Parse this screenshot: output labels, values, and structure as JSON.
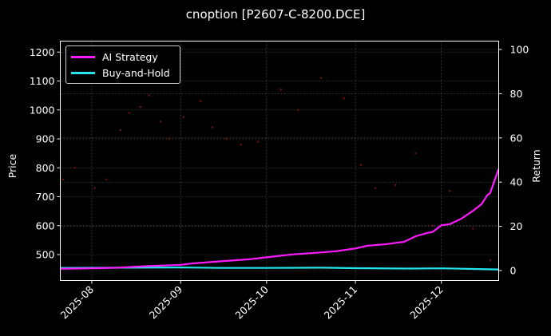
{
  "title": "cnoption [P2607-C-8200.DCE]",
  "colors": {
    "background": "#000000",
    "ai_strategy": "#ff1aff",
    "buy_and_hold": "#22e5ee",
    "price_points": "#7a1010",
    "grid": "#555555",
    "axis": "#ffffff"
  },
  "legend": {
    "items": [
      {
        "label": "AI Strategy",
        "color": "#ff1aff"
      },
      {
        "label": "Buy-and-Hold",
        "color": "#22e5ee"
      }
    ]
  },
  "chart_data": {
    "type": "line",
    "title": "cnoption [P2607-C-8200.DCE]",
    "xlabel": "",
    "ylabel": "Price",
    "y2label": "Return",
    "x_ticks": [
      "2025-08",
      "2025-09",
      "2025-10",
      "2025-11",
      "2025-12"
    ],
    "y_ticks": [
      500,
      600,
      700,
      800,
      900,
      1000,
      1100,
      1200
    ],
    "y2_ticks": [
      0,
      20,
      40,
      60,
      80,
      100
    ],
    "ylim": [
      420,
      1240
    ],
    "y2lim": [
      -3.5,
      104
    ],
    "xlim": [
      "2025-07-21",
      "2025-12-21"
    ],
    "grid": true,
    "legend_position": "upper left",
    "series": [
      {
        "name": "AI Strategy",
        "axis": "right",
        "x": [
          "2025-07-21",
          "2025-08-01",
          "2025-08-10",
          "2025-08-20",
          "2025-09-01",
          "2025-09-05",
          "2025-09-15",
          "2025-09-25",
          "2025-10-01",
          "2025-10-10",
          "2025-10-18",
          "2025-10-25",
          "2025-11-01",
          "2025-11-05",
          "2025-11-12",
          "2025-11-18",
          "2025-11-22",
          "2025-11-26",
          "2025-11-28",
          "2025-12-01",
          "2025-12-04",
          "2025-12-08",
          "2025-12-12",
          "2025-12-15",
          "2025-12-17",
          "2025-12-18",
          "2025-12-21"
        ],
        "values": [
          0.8,
          1.0,
          1.3,
          2.0,
          2.6,
          3.2,
          4.2,
          5.1,
          6.0,
          7.3,
          8.0,
          8.7,
          10.0,
          11.2,
          12.0,
          13.0,
          15.5,
          17.0,
          17.5,
          20.5,
          21.0,
          23.5,
          27.0,
          30.0,
          34.0,
          35.0,
          46.0
        ]
      },
      {
        "name": "Buy-and-Hold",
        "axis": "right",
        "x": [
          "2025-07-21",
          "2025-08-15",
          "2025-09-01",
          "2025-09-15",
          "2025-10-01",
          "2025-10-20",
          "2025-11-01",
          "2025-11-20",
          "2025-12-01",
          "2025-12-21"
        ],
        "values": [
          1.2,
          1.3,
          1.4,
          1.2,
          1.2,
          1.3,
          1.1,
          0.9,
          1.0,
          0.5
        ]
      },
      {
        "name": "Price",
        "axis": "left",
        "type": "scatter",
        "x": [
          "2025-07-22",
          "2025-07-26",
          "2025-08-02",
          "2025-08-06",
          "2025-08-11",
          "2025-08-14",
          "2025-08-18",
          "2025-08-21",
          "2025-08-25",
          "2025-08-28",
          "2025-09-02",
          "2025-09-08",
          "2025-09-12",
          "2025-09-17",
          "2025-09-22",
          "2025-09-28",
          "2025-10-06",
          "2025-10-12",
          "2025-10-20",
          "2025-10-28",
          "2025-11-03",
          "2025-11-08",
          "2025-11-15",
          "2025-11-22",
          "2025-11-28",
          "2025-12-04",
          "2025-12-12",
          "2025-12-18"
        ],
        "values": [
          760,
          800,
          730,
          760,
          930,
          990,
          1010,
          1050,
          960,
          900,
          975,
          1030,
          940,
          900,
          880,
          890,
          1070,
          1000,
          1110,
          1040,
          810,
          730,
          740,
          850,
          600,
          720,
          590,
          480
        ]
      }
    ]
  }
}
